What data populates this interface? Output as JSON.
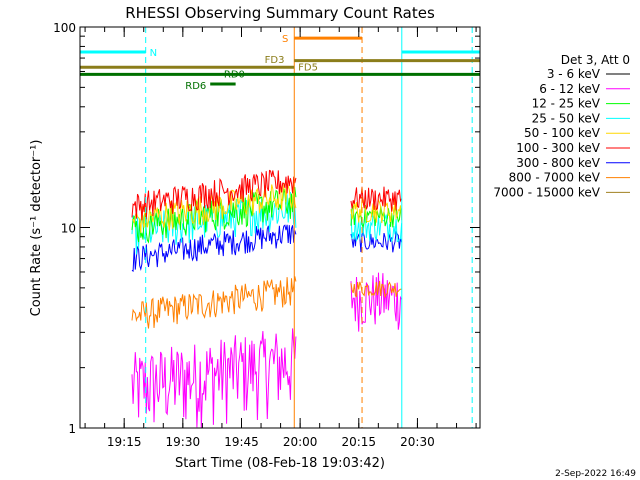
{
  "chart_data": {
    "type": "line",
    "title": "RHESSI Observing Summary Count Rates",
    "xlabel": "Start Time (08-Feb-18 19:03:42)",
    "ylabel": "Count Rate (s⁻¹ detector⁻¹)",
    "yscale": "log",
    "ylim": [
      1,
      100
    ],
    "xlim": [
      "19:03:42",
      "20:46:00"
    ],
    "x_ticks": [
      "19:15",
      "19:30",
      "19:45",
      "20:00",
      "20:15",
      "20:30"
    ],
    "y_ticks": [
      "1",
      "10",
      "100"
    ],
    "legend_title": "Det 3, Att 0",
    "legend_position": "right",
    "footer": "2-Sep-2022 16:49",
    "series": [
      {
        "name": "3 - 6 keV",
        "color": "#000000",
        "values": []
      },
      {
        "name": "6 - 12 keV",
        "color": "#ff00ff",
        "segments": [
          [
            "19:17",
            "19:59",
            1.0,
            2.8
          ],
          [
            "20:13",
            "20:26",
            3.0,
            6.0
          ]
        ]
      },
      {
        "name": "12 - 25 keV",
        "color": "#00ff00",
        "segments": [
          [
            "19:17",
            "19:59",
            9.5,
            14.0
          ],
          [
            "20:13",
            "20:26",
            10.0,
            13.0
          ]
        ]
      },
      {
        "name": "25 - 50 keV",
        "color": "#00ffff",
        "segments": [
          [
            "19:17",
            "19:59",
            8.5,
            13.5
          ],
          [
            "20:13",
            "20:26",
            8.5,
            12.0
          ]
        ]
      },
      {
        "name": "50 - 100 keV",
        "color": "#ffd700",
        "segments": [
          [
            "19:17",
            "19:59",
            10.5,
            15.0
          ],
          [
            "20:13",
            "20:26",
            10.5,
            14.0
          ]
        ]
      },
      {
        "name": "100 - 300 keV",
        "color": "#ff0000",
        "segments": [
          [
            "19:17",
            "19:59",
            12.5,
            17.5
          ],
          [
            "20:13",
            "20:26",
            12.0,
            16.0
          ]
        ]
      },
      {
        "name": "300 - 800 keV",
        "color": "#0000ff",
        "segments": [
          [
            "19:17",
            "19:59",
            7.0,
            9.5
          ],
          [
            "20:13",
            "20:26",
            7.5,
            9.5
          ]
        ]
      },
      {
        "name": "800 - 7000 keV",
        "color": "#ff8000",
        "segments": [
          [
            "19:17",
            "19:59",
            3.5,
            5.0
          ],
          [
            "20:13",
            "20:26",
            4.5,
            5.5
          ]
        ]
      },
      {
        "name": "7000 - 15000 keV",
        "color": "#a08020",
        "values": []
      }
    ],
    "annotations": [
      {
        "label": "N",
        "color": "#00ffff",
        "type": "hbar",
        "start": "19:03:42",
        "end": "19:20:30",
        "level": 75
      },
      {
        "label": "",
        "color": "#00ffff",
        "type": "hbar",
        "start": "20:26:00",
        "end": "20:46:00",
        "level": 75
      },
      {
        "label": "S",
        "color": "#ff8000",
        "type": "hbar",
        "start": "19:58:30",
        "end": "20:15:50",
        "level": 88
      },
      {
        "label": "FD3",
        "color": "#8b7d1a",
        "type": "hbar",
        "start": "19:03:42",
        "end": "19:58:30",
        "level": 63
      },
      {
        "label": "FD5",
        "color": "#8b7d1a",
        "type": "hbar",
        "start": "19:58:30",
        "end": "20:46:00",
        "level": 68
      },
      {
        "label": "RD0",
        "color": "#007000",
        "type": "hbar",
        "start": "19:03:42",
        "end": "20:46:00",
        "level": 58
      },
      {
        "label": "RD6",
        "color": "#007000",
        "type": "hbar",
        "start": "19:37:00",
        "end": "19:43:30",
        "level": 52
      }
    ],
    "vlines": [
      {
        "time": "19:20:30",
        "color": "#00ffff",
        "style": "dashed"
      },
      {
        "time": "19:58:30",
        "color": "#ff8000",
        "style": "solid"
      },
      {
        "time": "20:15:50",
        "color": "#ff8000",
        "style": "dashed"
      },
      {
        "time": "20:26:00",
        "color": "#00ffff",
        "style": "solid"
      },
      {
        "time": "20:44:00",
        "color": "#00ffff",
        "style": "dashed"
      }
    ]
  }
}
